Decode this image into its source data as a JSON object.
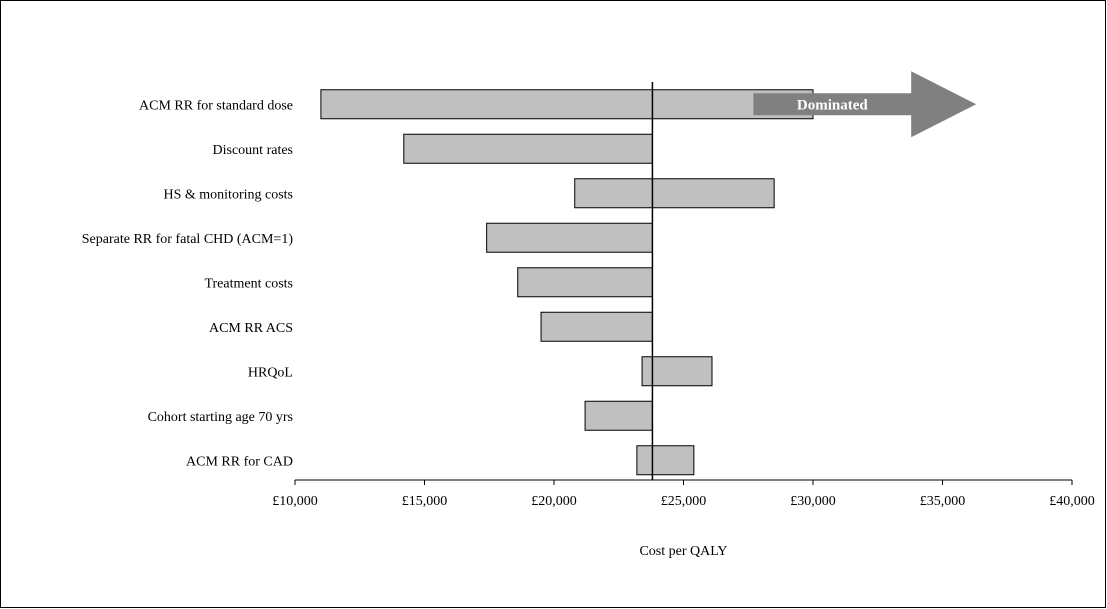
{
  "chart_data": {
    "type": "bar",
    "subtype": "tornado",
    "xlabel": "Cost per QALY",
    "xlim": [
      10000,
      40000
    ],
    "xticks": [
      10000,
      15000,
      20000,
      25000,
      30000,
      35000,
      40000
    ],
    "xtick_labels": [
      "£10,000",
      "£15,000",
      "£20,000",
      "£25,000",
      "£30,000",
      "£35,000",
      "£40,000"
    ],
    "base_value": 23800,
    "categories": [
      "ACM RR for standard dose",
      "Discount rates",
      "HS & monitoring costs",
      "Separate RR for fatal CHD (ACM=1)",
      "Treatment costs",
      "ACM RR ACS",
      "HRQoL",
      "Cohort starting age 70 yrs",
      "ACM RR for CAD"
    ],
    "ranges": [
      [
        11000,
        30000
      ],
      [
        14200,
        23800
      ],
      [
        20800,
        28500
      ],
      [
        17400,
        23800
      ],
      [
        18600,
        23800
      ],
      [
        19500,
        23800
      ],
      [
        23400,
        26100
      ],
      [
        21200,
        23800
      ],
      [
        23200,
        25400
      ]
    ],
    "annotation": {
      "text": "Dominated",
      "category": "ACM RR for standard dose",
      "x_start": 27700,
      "x_end": 36300
    },
    "colors": {
      "bar_fill": "#c0c0c0",
      "bar_stroke": "#000000",
      "arrow_fill": "#808080",
      "annotation_text": "#ffffff"
    },
    "grid": false,
    "legend": "none"
  }
}
